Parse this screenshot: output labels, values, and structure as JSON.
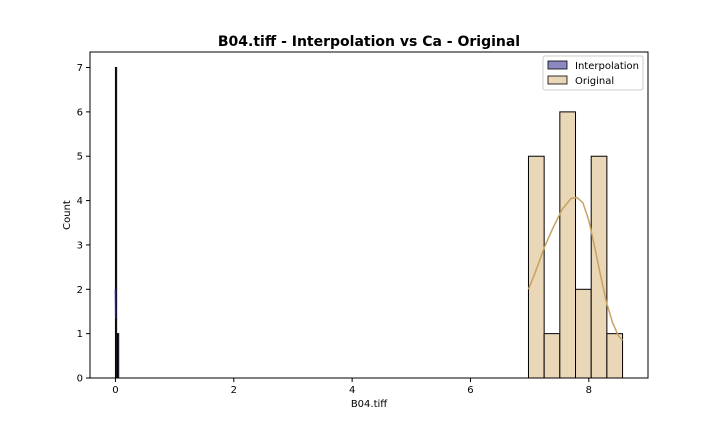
{
  "chart_data": {
    "type": "bar",
    "title": "B04.tiff - Interpolation vs Ca - Original",
    "xlabel": "B04.tiff",
    "ylabel": "Count",
    "xlim": [
      -0.43,
      9.0
    ],
    "ylim": [
      0,
      7.35
    ],
    "x_ticks": [
      0,
      2,
      4,
      6,
      8
    ],
    "y_ticks": [
      0,
      1,
      2,
      3,
      4,
      5,
      6,
      7
    ],
    "legend": {
      "placement": "top-right"
    },
    "grid": false,
    "series": [
      {
        "name": "Interpolation",
        "color": "#8b88c4",
        "edge_color": "#000000",
        "kde_color": "#2a1ea8",
        "bins": [
          {
            "x0": 0.0,
            "x1": 0.014,
            "count": 7
          },
          {
            "x0": 0.035,
            "x1": 0.055,
            "count": 1
          }
        ],
        "kde": [
          [
            0.0,
            2.0
          ],
          [
            0.005,
            1.35
          ]
        ]
      },
      {
        "name": "Original",
        "color": "#ead7b7",
        "edge_color": "#000000",
        "kde_color": "#c8a260",
        "bins": [
          {
            "x0": 6.98,
            "x1": 7.245,
            "count": 5
          },
          {
            "x0": 7.245,
            "x1": 7.51,
            "count": 1
          },
          {
            "x0": 7.51,
            "x1": 7.775,
            "count": 6
          },
          {
            "x0": 7.775,
            "x1": 8.04,
            "count": 2
          },
          {
            "x0": 8.04,
            "x1": 8.305,
            "count": 5
          },
          {
            "x0": 8.305,
            "x1": 8.57,
            "count": 1
          }
        ],
        "kde": [
          [
            6.98,
            2.0
          ],
          [
            7.1,
            2.4
          ],
          [
            7.25,
            2.95
          ],
          [
            7.4,
            3.4
          ],
          [
            7.55,
            3.8
          ],
          [
            7.7,
            4.05
          ],
          [
            7.8,
            4.07
          ],
          [
            7.9,
            3.95
          ],
          [
            8.0,
            3.55
          ],
          [
            8.1,
            2.95
          ],
          [
            8.2,
            2.3
          ],
          [
            8.3,
            1.7
          ],
          [
            8.4,
            1.25
          ],
          [
            8.5,
            0.95
          ],
          [
            8.57,
            0.85
          ]
        ]
      }
    ]
  }
}
